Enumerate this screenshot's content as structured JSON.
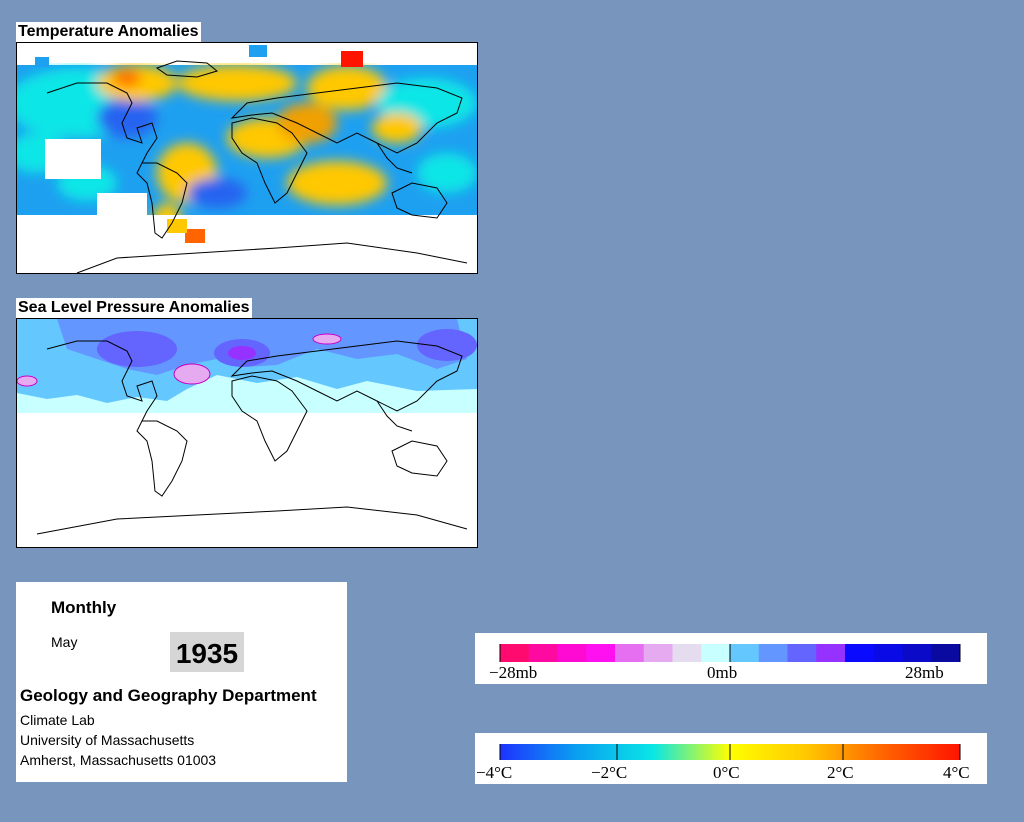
{
  "maps": {
    "temperature_title": "Temperature Anomalies",
    "pressure_title": "Sea Level Pressure Anomalies"
  },
  "info": {
    "period": "Monthly",
    "month": "May",
    "year": "1935",
    "department": "Geology and Geography Department",
    "lab": "Climate Lab",
    "university": "University of Massachusetts",
    "address": "Amherst, Massachusetts 01003"
  },
  "pressure_legend": {
    "colors": [
      "#ff0a6e",
      "#ff0aa0",
      "#ff0ad2",
      "#ff10f0",
      "#e66ef0",
      "#e6aaf0",
      "#e6dcf0",
      "#c8ffff",
      "#64c8ff",
      "#6496ff",
      "#6464ff",
      "#9632ff",
      "#0a0aff",
      "#0a0ae6",
      "#0a0ac8",
      "#0a0aa0"
    ],
    "labels": [
      "−28mb",
      "0mb",
      "28mb"
    ]
  },
  "temperature_legend": {
    "gradient": [
      "#1e32ff",
      "#0aa0f0",
      "#0ae6e6",
      "#ffff00",
      "#ffc800",
      "#ff6400",
      "#ff1400"
    ],
    "labels": [
      "−4°C",
      "−2°C",
      "0°C",
      "2°C",
      "4°C"
    ]
  }
}
